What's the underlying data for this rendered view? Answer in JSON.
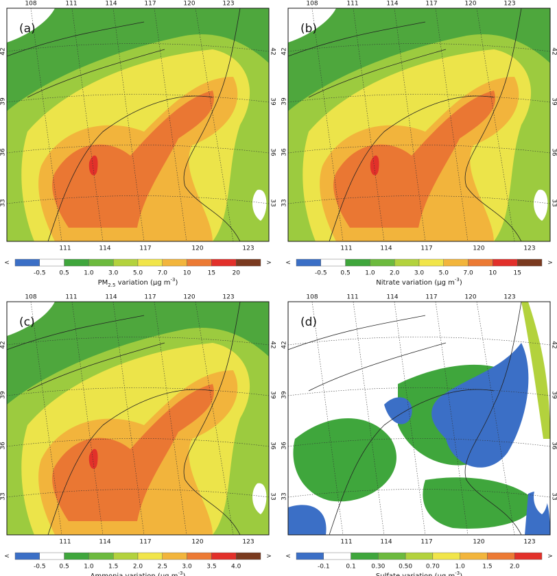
{
  "lon_top": [
    108,
    111,
    114,
    117,
    120,
    123
  ],
  "lon_bottom": [
    111,
    114,
    117,
    120,
    123
  ],
  "lat": [
    42,
    39,
    36,
    33
  ],
  "colorbar_ends": [
    "<",
    ">"
  ],
  "panels": [
    {
      "label": "(a)",
      "title": [
        {
          "text": "PM"
        },
        {
          "sub": "2.5"
        },
        {
          "text": " variation (μg m"
        },
        {
          "sup": "-3"
        },
        {
          "text": ")"
        }
      ],
      "ticks": [
        "-0.5",
        "0.5",
        "1.0",
        "3.0",
        "5.0",
        "7.0",
        "10",
        "15",
        "20"
      ],
      "colors": [
        "#3b6fc6",
        "#ffffff",
        "#3fa63c",
        "#6cba3e",
        "#b3d23d",
        "#f1e54a",
        "#f2b53c",
        "#ec7a34",
        "#e2302a",
        "#7a3a1f"
      ]
    },
    {
      "label": "(b)",
      "title": [
        {
          "text": "Nitrate variation (μg m"
        },
        {
          "sup": "-3"
        },
        {
          "text": ")"
        }
      ],
      "ticks": [
        "-0.5",
        "0.5",
        "1.0",
        "2.0",
        "3.0",
        "5.0",
        "7.0",
        "10",
        "15"
      ],
      "colors": [
        "#3b6fc6",
        "#ffffff",
        "#3fa63c",
        "#6cba3e",
        "#b3d23d",
        "#f1e54a",
        "#f2b53c",
        "#ec7a34",
        "#e2302a",
        "#7a3a1f"
      ]
    },
    {
      "label": "(c)",
      "title": [
        {
          "text": "Ammonia variation (μg m"
        },
        {
          "sup": "-3"
        },
        {
          "text": ")"
        }
      ],
      "ticks": [
        "-0.5",
        "0.5",
        "1.0",
        "1.5",
        "2.0",
        "2.5",
        "3.0",
        "3.5",
        "4.0"
      ],
      "colors": [
        "#3b6fc6",
        "#ffffff",
        "#3fa63c",
        "#6cba3e",
        "#b3d23d",
        "#f1e54a",
        "#f2b53c",
        "#ec7a34",
        "#e2302a",
        "#7a3a1f"
      ]
    },
    {
      "label": "(d)",
      "title": [
        {
          "text": "Sulfate variation (μg m"
        },
        {
          "sup": "-3"
        },
        {
          "text": ")"
        }
      ],
      "ticks": [
        "-0.1",
        "0.1",
        "0.30",
        "0.50",
        "0.70",
        "1.0",
        "1.5",
        "2.0"
      ],
      "colors": [
        "#3b6fc6",
        "#ffffff",
        "#3fa63c",
        "#6cba3e",
        "#b3d23d",
        "#f1e54a",
        "#f2b53c",
        "#ec7a34",
        "#e2302a"
      ]
    }
  ]
}
